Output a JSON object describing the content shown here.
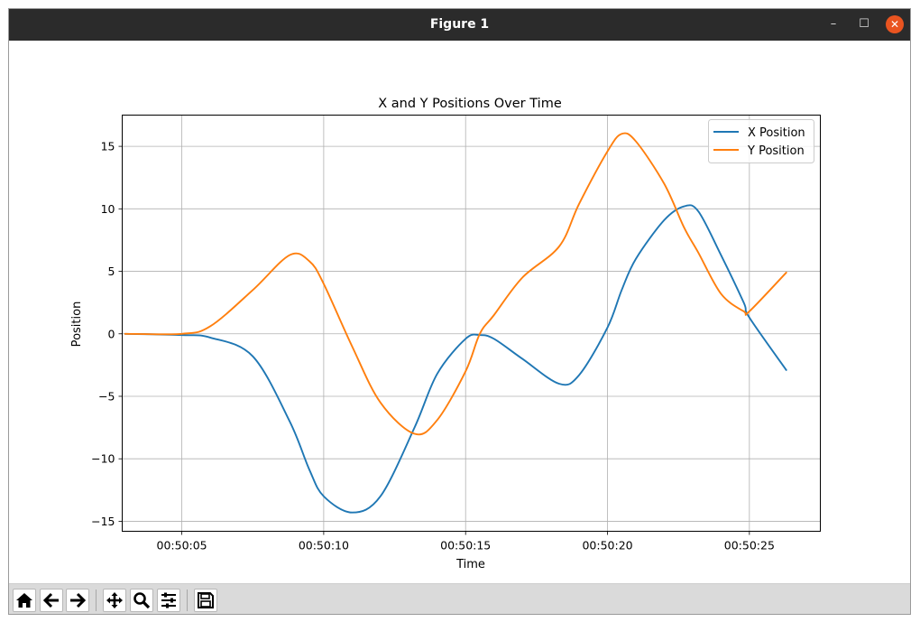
{
  "window": {
    "title": "Figure 1"
  },
  "window_controls": [
    {
      "name": "minimize-button",
      "glyph": "–"
    },
    {
      "name": "maximize-button",
      "glyph": "☐"
    },
    {
      "name": "close-button",
      "glyph": "✕"
    }
  ],
  "toolbar": {
    "buttons": [
      "home-icon",
      "back-arrow-icon",
      "forward-arrow-icon",
      "pan-icon",
      "zoom-icon",
      "subplots-config-icon",
      "save-icon"
    ]
  },
  "colors": {
    "x_series": "#1f77b4",
    "y_series": "#ff7f0e",
    "grid": "#b0b0b0",
    "titlebar": "#2b2b2b",
    "close": "#e95420"
  },
  "chart_data": {
    "type": "line",
    "title": "X and Y Positions Over Time",
    "xlabel": "Time",
    "ylabel": "Position",
    "xlim": [
      "00:50:02.9",
      "00:50:27.5"
    ],
    "ylim": [
      -15.8,
      17.5
    ],
    "xticks": [
      "00:50:05",
      "00:50:10",
      "00:50:15",
      "00:50:20",
      "00:50:25"
    ],
    "yticks": [
      15,
      10,
      5,
      0,
      -5,
      -10,
      -15
    ],
    "grid": true,
    "legend": "top-right",
    "x": [
      "00:50:03.0",
      "00:50:05.0",
      "00:50:06.0",
      "00:50:07.5",
      "00:50:08.8",
      "00:50:09.5",
      "00:50:10.0",
      "00:50:11.0",
      "00:50:12.0",
      "00:50:13.2",
      "00:50:14.0",
      "00:50:15.0",
      "00:50:15.5",
      "00:50:16.0",
      "00:50:17.0",
      "00:50:18.3",
      "00:50:19.0",
      "00:50:20.0",
      "00:50:20.5",
      "00:50:21.0",
      "00:50:22.0",
      "00:50:22.7",
      "00:50:23.2",
      "00:50:24.0",
      "00:50:24.8",
      "00:50:25.0",
      "00:50:26.3"
    ],
    "series": [
      {
        "name": "X Position",
        "values": [
          0.0,
          -0.1,
          -0.3,
          -1.8,
          -7.0,
          -10.9,
          -13.0,
          -14.3,
          -13.0,
          -7.5,
          -3.2,
          -0.4,
          -0.1,
          -0.4,
          -2.0,
          -4.0,
          -3.3,
          0.5,
          3.5,
          6.0,
          9.1,
          10.2,
          9.8,
          6.3,
          2.5,
          1.3,
          -2.9
        ]
      },
      {
        "name": "Y Position",
        "values": [
          0.0,
          0.0,
          0.6,
          3.5,
          6.3,
          5.8,
          4.0,
          -1.0,
          -5.5,
          -8.0,
          -6.9,
          -3.0,
          0.0,
          1.5,
          4.5,
          7.0,
          10.4,
          14.6,
          16.0,
          15.4,
          12.0,
          8.5,
          6.5,
          3.2,
          1.8,
          1.8,
          4.9
        ]
      }
    ]
  }
}
